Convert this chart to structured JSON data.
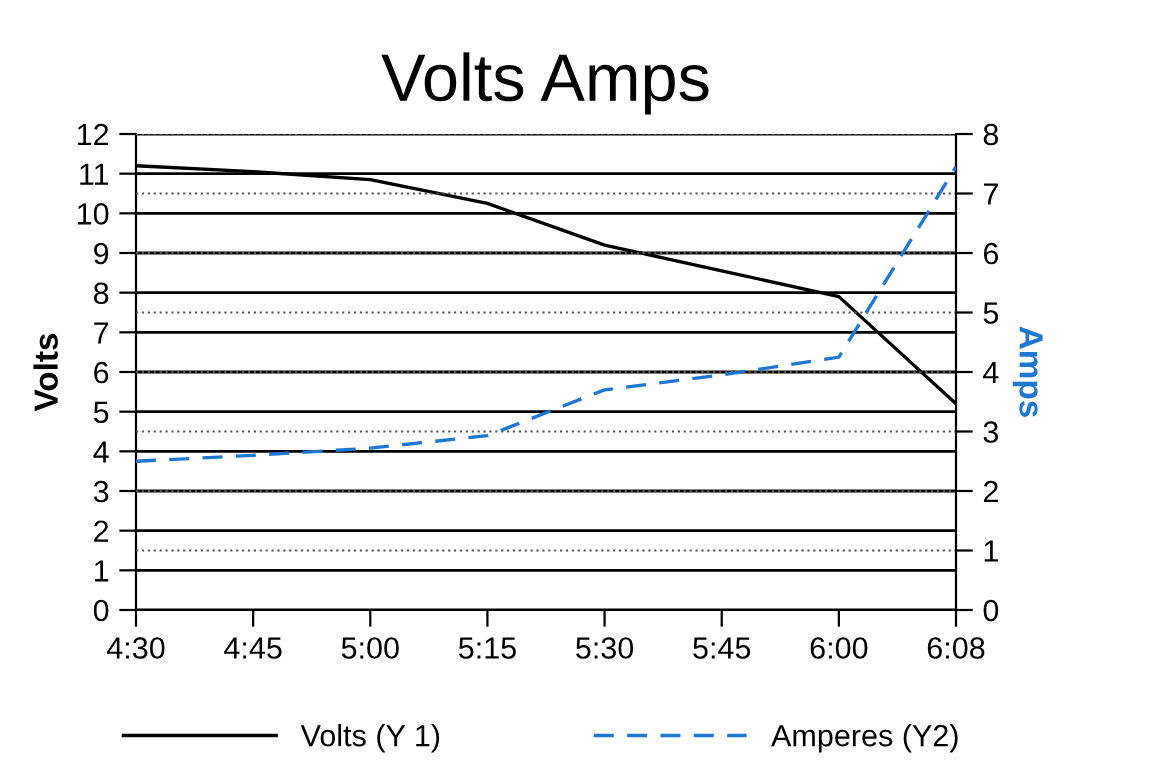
{
  "chart_data": {
    "type": "line",
    "title": "Volts Amps",
    "ylabel": "Volts",
    "y2label": "Amps",
    "categories": [
      "4:30",
      "4:45",
      "5:00",
      "5:15",
      "5:30",
      "5:45",
      "6:00",
      "6:08"
    ],
    "series": [
      {
        "name": "Volts (Y 1)",
        "color": "#000000",
        "line_style": "solid",
        "values": [
          11.2,
          11.05,
          10.85,
          10.25,
          9.2,
          8.55,
          7.9,
          5.2
        ]
      },
      {
        "name": "Amperes (Y2)",
        "color": "#1e78d2",
        "line_style": "dashed",
        "axis": "y2",
        "values": [
          2.5,
          2.6,
          2.72,
          2.93,
          3.7,
          3.95,
          4.25,
          7.45
        ]
      }
    ],
    "ylim": [
      0,
      12
    ],
    "yticks": [
      0,
      1,
      2,
      3,
      4,
      5,
      6,
      7,
      8,
      9,
      10,
      11,
      12
    ],
    "y2lim": [
      0,
      8
    ],
    "y2ticks": [
      0,
      1,
      2,
      3,
      4,
      5,
      6,
      7,
      8
    ],
    "grid": true,
    "legend": "bottom",
    "marker": "none"
  }
}
